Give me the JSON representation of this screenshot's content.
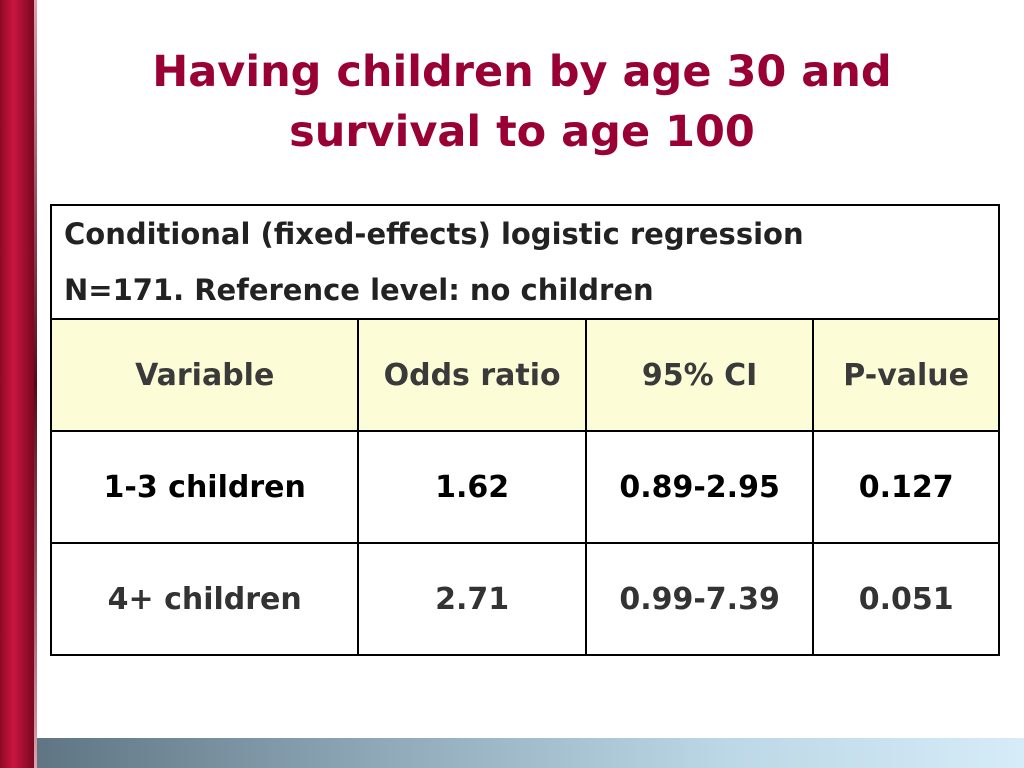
{
  "title": {
    "line1": "Having children by age 30 and",
    "line2": "survival to age 100"
  },
  "table": {
    "caption_line1": "Conditional (fixed-effects) logistic regression",
    "caption_line2": "N=171.  Reference level: no children",
    "headers": [
      "Variable",
      "Odds ratio",
      "95% CI",
      "P-value"
    ],
    "rows": [
      [
        "1-3 children",
        "1.62",
        "0.89-2.95",
        "0.127"
      ],
      [
        "4+ children",
        "2.71",
        "0.99-7.39",
        "0.051"
      ]
    ]
  },
  "colors": {
    "title": "#990033",
    "left_bar": "#b01030",
    "header_fill": "#fcfdd6"
  }
}
